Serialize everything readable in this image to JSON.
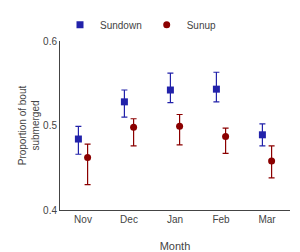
{
  "chart_data": {
    "type": "errorbar",
    "categories": [
      "Nov",
      "Dec",
      "Jan",
      "Feb",
      "Mar"
    ],
    "series": [
      {
        "name": "Sundown",
        "color": "#2222aa",
        "marker": "square",
        "values": [
          0.484,
          0.528,
          0.542,
          0.543,
          0.489
        ],
        "yerr_low": [
          0.018,
          0.018,
          0.015,
          0.015,
          0.013
        ],
        "yerr_high": [
          0.015,
          0.014,
          0.02,
          0.02,
          0.013
        ]
      },
      {
        "name": "Sunup",
        "color": "#8b0000",
        "marker": "circle",
        "values": [
          0.462,
          0.498,
          0.499,
          0.487,
          0.458
        ],
        "yerr_low": [
          0.032,
          0.022,
          0.022,
          0.02,
          0.02
        ],
        "yerr_high": [
          0.016,
          0.01,
          0.014,
          0.01,
          0.018
        ]
      }
    ],
    "xlabel": "Month",
    "ylabel": "Proportion of bout\nsubmerged",
    "ylim": [
      0.4,
      0.6
    ],
    "yticks": [
      0.4,
      0.5,
      0.6
    ],
    "grid": false,
    "legend": "upper left"
  }
}
